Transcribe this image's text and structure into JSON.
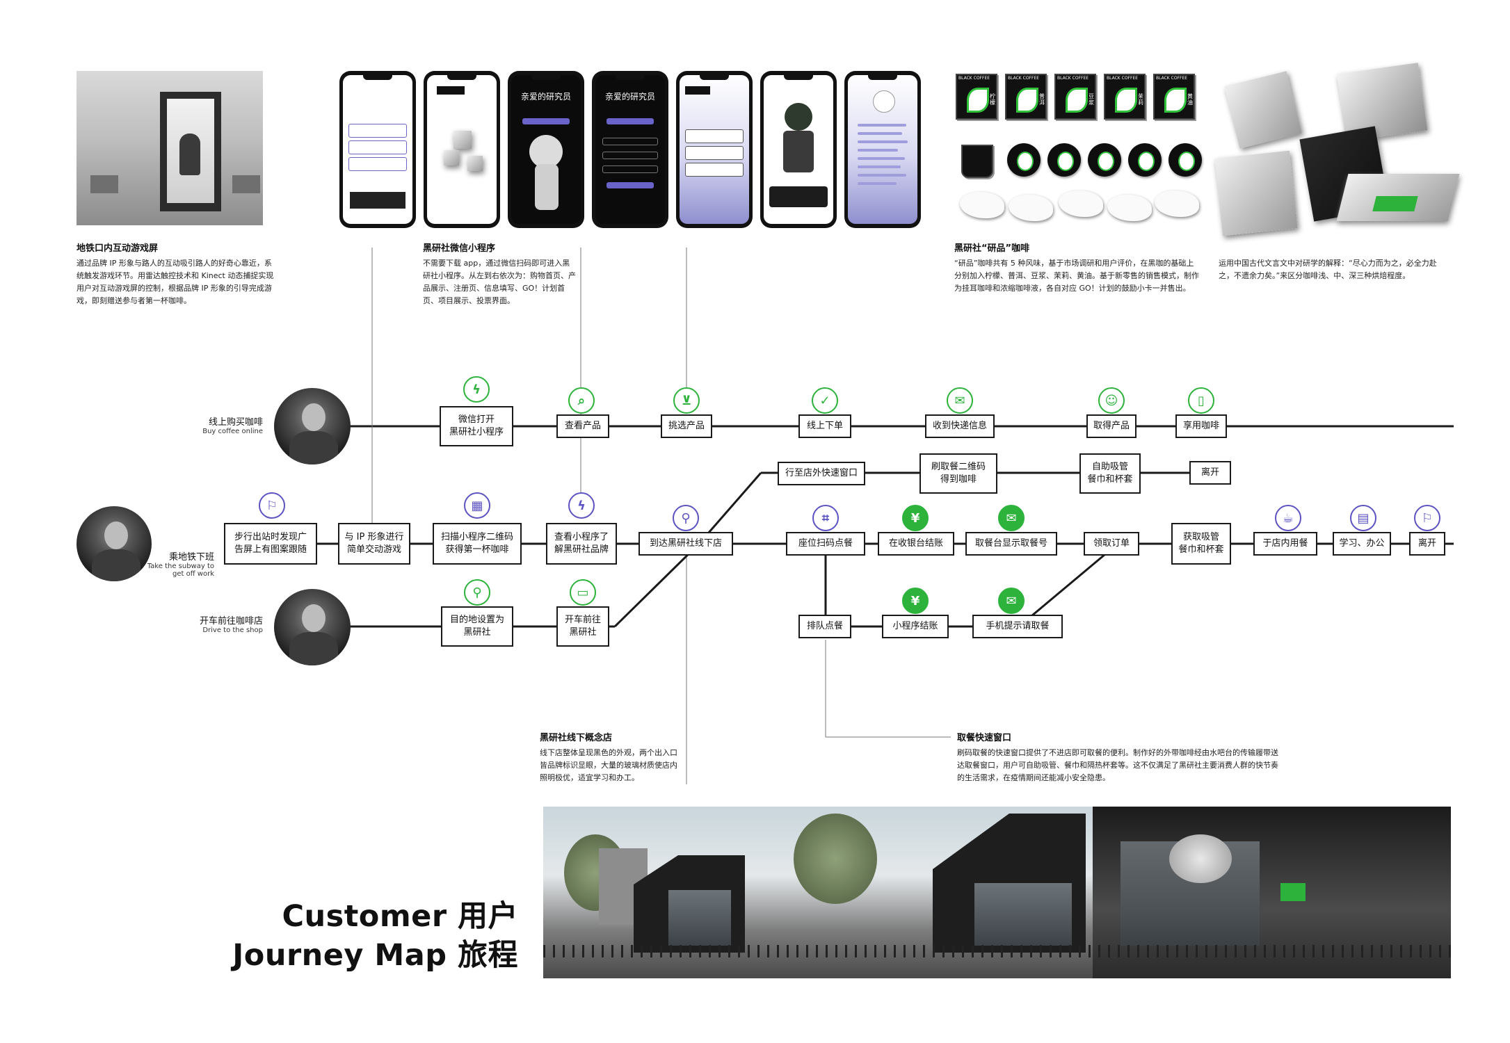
{
  "sections": {
    "metro": {
      "title": "地铁口内互动游戏屏",
      "text": "通过品牌 IP 形象与路人的互动吸引路人的好奇心靠近，系统触发游戏环节。用雷达触控技术和 Kinect 动态捕捉实现用户对互动游戏屏的控制，根据品牌 IP 形象的引导完成游戏，即刻赠送参与者第一杯咖啡。"
    },
    "miniprogram": {
      "title": "黑研社微信小程序",
      "text": "不需要下载 app，通过微信扫码即可进入黑研社小程序。从左到右依次为：购物首页、产品展示、注册页、信息填写、GO！计划首页、项目展示、投票界面。"
    },
    "coffee": {
      "title": "黑研社“研品”咖啡",
      "text": "“研品”咖啡共有 5 种风味，基于市场调研和用户评价，在黑咖的基础上分别加入柠檬、普洱、豆浆、茉莉、黄油。基于新零售的销售模式，制作为挂耳咖啡和浓缩咖啡液，各自对应 GO！计划的鼓励小卡一并售出。"
    },
    "research": {
      "text": "运用中国古代文言文中对研学的解释：“尽心力而为之，必全力赴之，不遗余力矣。”来区分咖啡浅、中、深三种烘焙程度。"
    },
    "store": {
      "title": "黑研社线下概念店",
      "text": "线下店整体呈现黑色的外观，两个出入口皆品牌标识显眼，大量的玻璃材质使店内照明极优，适宜学习和办工。"
    },
    "pickup": {
      "title": "取餐快速窗口",
      "text": "刷码取餐的快速窗口提供了不进店即可取餐的便利。制作好的外带咖啡经由水吧台的传输履带送达取餐窗口，用户可自助吸管、餐巾和隔热杯套等。这不仅满足了黑研社主要消费人群的快节奏的生活需求，在疫情期间还能减小安全隐患。"
    }
  },
  "phones": {
    "p3": {
      "title": "亲爱的研究员"
    },
    "p4": {
      "title": "亲爱的研究员"
    }
  },
  "coffee_labels": [
    "BLACK COFFEE",
    "BLACK COFFEE",
    "BLACK COFFEE",
    "BLACK COFFEE",
    "BLACK COFFEE"
  ],
  "flavor_labels": [
    "柠檬",
    "普洱",
    "豆浆",
    "茉莉",
    "黄油"
  ],
  "personas": {
    "online": {
      "cn": "线上购买咖啡",
      "en": "Buy coffee online"
    },
    "subway": {
      "cn": "乘地铁下班",
      "en": "Take the subway to get off work"
    },
    "drive": {
      "cn": "开车前往咖啡店",
      "en": "Drive to the shop"
    }
  },
  "nodes": {
    "wechat_open": "微信打开\n黑研社小程序",
    "view_product": "查看产品",
    "select_product": "挑选产品",
    "order_online": "线上下单",
    "receive_msg": "收到快递信息",
    "get_product": "取得产品",
    "enjoy_coffee": "享用咖啡",
    "walk_ad": "步行出站时发现广\n告屏上有图案跟随",
    "ip_game": "与 IP 形象进行\n简单交动游戏",
    "scan_qr": "扫描小程序二维码\n获得第一杯咖啡",
    "view_mini": "查看小程序了\n解黑研社品牌",
    "arrive_store": "到达黑研社线下店",
    "set_dest": "目的地设置为\n黑研社",
    "drive_to": "开车前往\n黑研社",
    "walk_window": "行至店外快速窗口",
    "scan_pickup": "刷取餐二维码\n得到咖啡",
    "self_straw": "自助吸管\n餐巾和杯套",
    "leave1": "离开",
    "seat_scan": "座位扫码点餐",
    "cashier": "在收银台结账",
    "counter_display": "取餐台显示取餐号",
    "collect": "领取订单",
    "get_straw": "获取吸管\n餐巾和杯套",
    "dine_in": "于店内用餐",
    "study": "学习、办公",
    "leave2": "离开",
    "queue": "排队点餐",
    "mini_pay": "小程序结账",
    "phone_notify": "手机提示请取餐"
  },
  "title": {
    "line1": "Customer 用户",
    "line2": "Journey Map 旅程"
  },
  "colors": {
    "accent": "#2db33b",
    "line": "#1a1a1a"
  }
}
